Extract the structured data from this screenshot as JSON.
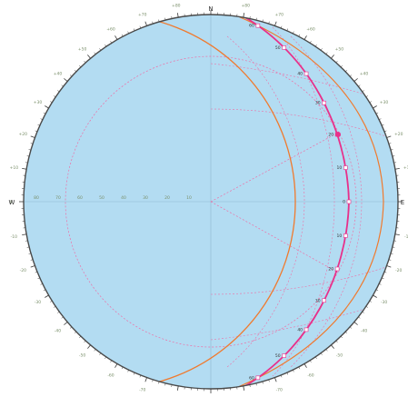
{
  "colors": {
    "background": "#ffffff",
    "disk_fill": "#b3dcf2",
    "rim": "#4a4a4a",
    "tick": "#3a3a3a",
    "crosshair": "#8fb8d0",
    "orange_curve": "#f07a2e",
    "magenta_curve": "#e8308a",
    "pink_dashed": "#ee6fa6",
    "tick_label": "#7a8f6a",
    "marker_label": "#333333"
  },
  "cardinal": {
    "top": "N",
    "left": "W",
    "right": "E"
  },
  "rim_labels": {
    "left_side": [
      "+80",
      "+70",
      "+60",
      "+50",
      "+40",
      "+30",
      "+20",
      "+10",
      "0",
      "-10",
      "-20",
      "-30",
      "-40",
      "-50",
      "-60",
      "-70",
      "-80"
    ],
    "right_side": [
      "+80",
      "+70",
      "+60",
      "+50",
      "+40",
      "+30",
      "+20",
      "+10",
      "0",
      "-10",
      "-20",
      "-30",
      "-40",
      "-50",
      "-60",
      "-70",
      "-80"
    ]
  },
  "equator_labels": [
    "80",
    "70",
    "60",
    "50",
    "40",
    "30",
    "20",
    "10"
  ],
  "marker_labels": [
    "60",
    "50",
    "40",
    "30",
    "20",
    "10",
    "0",
    "10",
    "20",
    "30",
    "40",
    "50",
    "60"
  ],
  "icons": {
    "sun_marker": "filled-circle-marker"
  }
}
